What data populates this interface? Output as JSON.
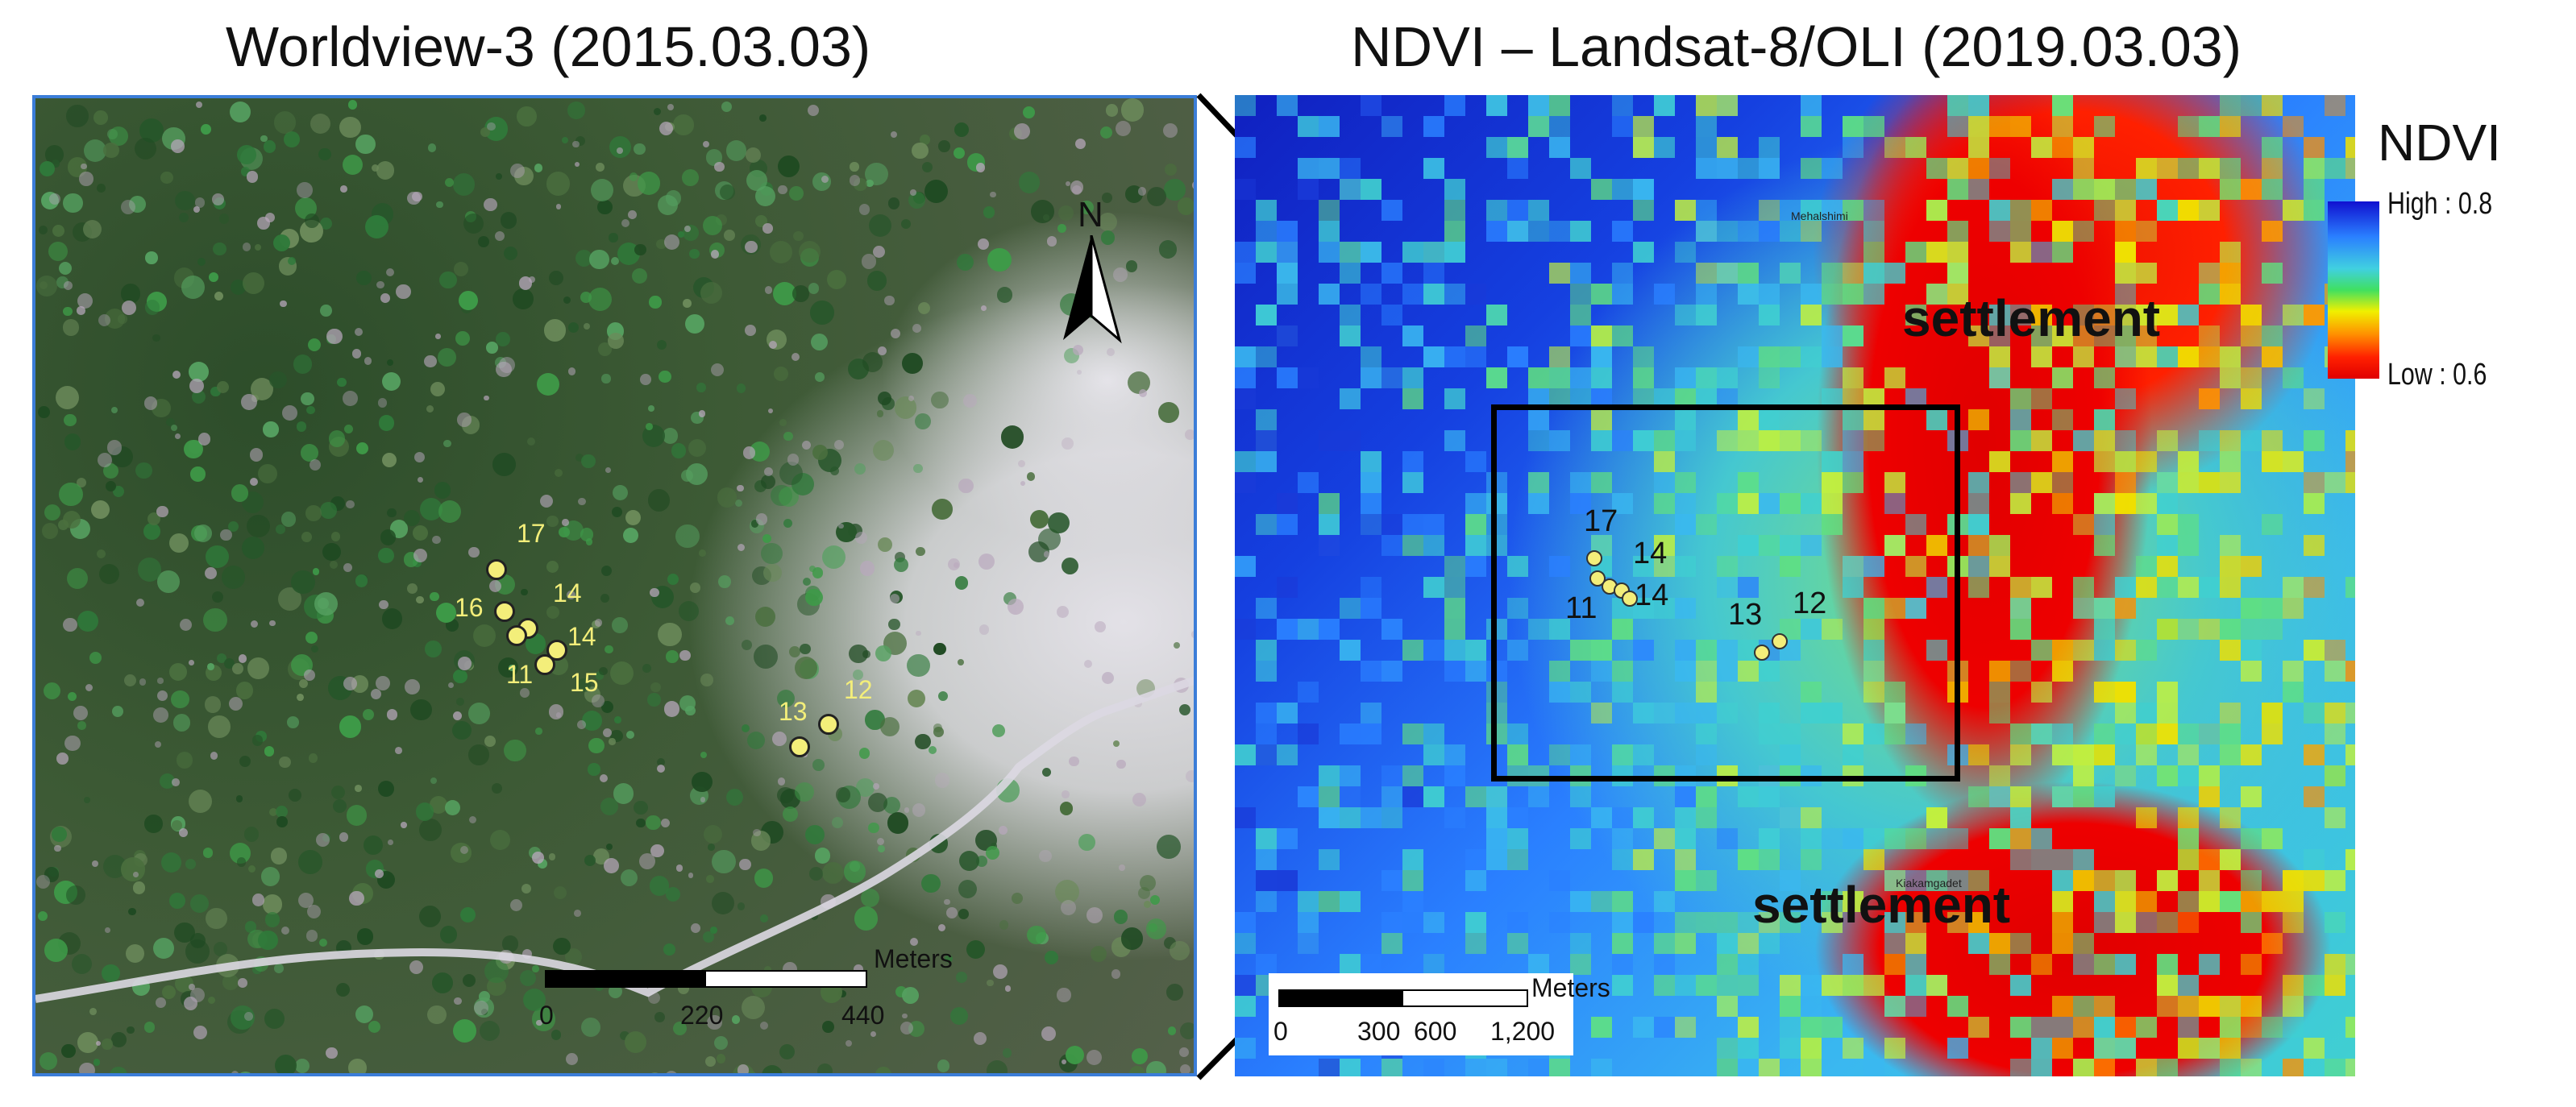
{
  "titles": {
    "left": "Worldview-3 (2015.03.03)",
    "right": "NDVI – Landsat-8/OLI (2019.03.03)"
  },
  "left_map": {
    "north_arrow_label": "N",
    "points": [
      {
        "label": "17"
      },
      {
        "label": "16"
      },
      {
        "label": "14"
      },
      {
        "label": "14"
      },
      {
        "label": "11"
      },
      {
        "label": "15"
      },
      {
        "label": "13"
      },
      {
        "label": "12"
      }
    ],
    "scalebar": {
      "unit": "Meters",
      "ticks": [
        "0",
        "220",
        "440"
      ]
    }
  },
  "right_map": {
    "settlement_labels": [
      "settlement",
      "settlement"
    ],
    "place_names": [
      "Mehalshimi",
      "Kiakamgadet"
    ],
    "points": [
      {
        "label": "17"
      },
      {
        "label": "14"
      },
      {
        "label": "11"
      },
      {
        "label": "14"
      },
      {
        "label": "13"
      },
      {
        "label": "12"
      }
    ],
    "scalebar": {
      "unit": "Meters",
      "ticks": [
        "0",
        "300",
        "600",
        "1,200"
      ]
    }
  },
  "legend": {
    "title": "NDVI",
    "high_label": "High : 0.8",
    "low_label": "Low : 0.6",
    "colors": [
      "#1010d0",
      "#2a80ff",
      "#40d0e0",
      "#40e060",
      "#f0f000",
      "#ff9000",
      "#e00000"
    ]
  }
}
